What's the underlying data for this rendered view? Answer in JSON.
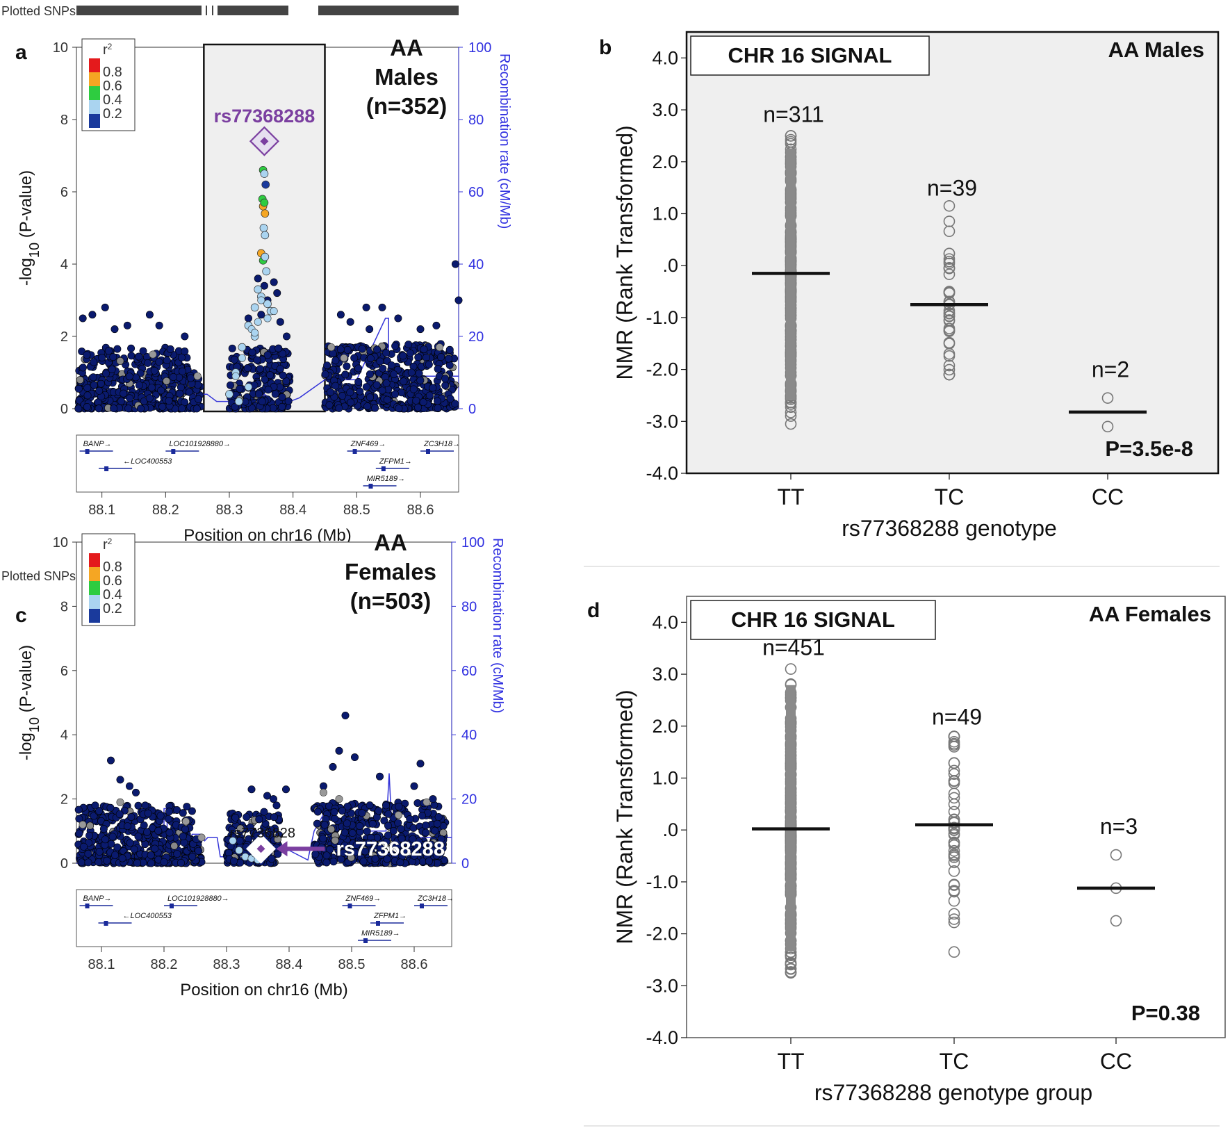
{
  "figure": {
    "panel_labels": [
      "a",
      "b",
      "c",
      "d"
    ],
    "plotted_snps_label": "Plotted SNPs",
    "legend": {
      "title": "r",
      "title_sup": "2",
      "values": [
        "0.8",
        "0.6",
        "0.4",
        "0.2"
      ],
      "colors": [
        "#e41a1c",
        "#f5a623",
        "#2ecc40",
        "#aad4f0",
        "#1a3a9c"
      ]
    },
    "colors": {
      "snp_navy": "#0a1a6e",
      "recomb_blue": "#3535d8",
      "purple": "#7b3fa0",
      "panel_bg": "#efefef"
    }
  },
  "chart_data": [
    {
      "id": "a",
      "type": "scatter",
      "title": "AA Males (n=352)",
      "title_lines": [
        "AA",
        "Males",
        "(n=352)"
      ],
      "ylabel": "-log",
      "ylabel_sub": "10",
      "ylabel_tail": " (P-value)",
      "y2label": "Recombination rate (cM/Mb)",
      "xlabel": "Position on chr16 (Mb)",
      "xlim": [
        88.06,
        88.66
      ],
      "ylim": [
        0,
        10
      ],
      "y2lim": [
        0,
        100
      ],
      "x_ticks": [
        "88.1",
        "88.2",
        "88.3",
        "88.4",
        "88.5",
        "88.6"
      ],
      "y_ticks": [
        "0",
        "2",
        "4",
        "6",
        "8",
        "10"
      ],
      "y2_ticks": [
        "0",
        "20",
        "40",
        "60",
        "80",
        "100"
      ],
      "highlight_region": [
        88.26,
        88.45
      ],
      "lead_snp": {
        "name": "rs77368288",
        "x": 88.355,
        "y": 7.4
      },
      "colored_points": [
        {
          "x": 88.353,
          "y": 6.6,
          "r2": 0.5
        },
        {
          "x": 88.355,
          "y": 6.5,
          "r2": 0.3
        },
        {
          "x": 88.357,
          "y": 6.2,
          "r2": 0.15
        },
        {
          "x": 88.352,
          "y": 5.8,
          "r2": 0.5
        },
        {
          "x": 88.353,
          "y": 5.6,
          "r2": 0.7
        },
        {
          "x": 88.355,
          "y": 5.7,
          "r2": 0.5
        },
        {
          "x": 88.356,
          "y": 5.4,
          "r2": 0.7
        },
        {
          "x": 88.354,
          "y": 5.0,
          "r2": 0.3
        },
        {
          "x": 88.356,
          "y": 4.8,
          "r2": 0.3
        },
        {
          "x": 88.35,
          "y": 4.3,
          "r2": 0.7
        },
        {
          "x": 88.353,
          "y": 4.1,
          "r2": 0.5
        },
        {
          "x": 88.356,
          "y": 4.2,
          "r2": 0.3
        },
        {
          "x": 88.358,
          "y": 3.8,
          "r2": 0.3
        },
        {
          "x": 88.345,
          "y": 3.3,
          "r2": 0.3
        },
        {
          "x": 88.35,
          "y": 3.1,
          "r2": 0.3
        },
        {
          "x": 88.34,
          "y": 2.8,
          "r2": 0.3
        },
        {
          "x": 88.36,
          "y": 2.9,
          "r2": 0.3
        },
        {
          "x": 88.33,
          "y": 2.3,
          "r2": 0.3
        },
        {
          "x": 88.365,
          "y": 2.7,
          "r2": 0.3
        },
        {
          "x": 88.32,
          "y": 1.7,
          "r2": 0.3
        },
        {
          "x": 88.31,
          "y": 1.0,
          "r2": 0.3
        },
        {
          "x": 88.3,
          "y": 0.4,
          "r2": 0.3
        },
        {
          "x": 88.315,
          "y": 0.2,
          "r2": 0.3
        },
        {
          "x": 88.34,
          "y": 2.0,
          "r2": 0.3
        }
      ],
      "genes": [
        {
          "name": "BANP",
          "arrow": "→",
          "x": 88.065,
          "row": 0
        },
        {
          "name": "LOC400553",
          "arrow": "←",
          "x": 88.095,
          "row": 1
        },
        {
          "name": "LOC101928880",
          "arrow": "→",
          "x": 88.2,
          "row": 0
        },
        {
          "name": "ZNF469",
          "arrow": "→",
          "x": 88.485,
          "row": 0
        },
        {
          "name": "ZFPM1",
          "arrow": "→",
          "x": 88.53,
          "row": 1
        },
        {
          "name": "MIR5189",
          "arrow": "→",
          "x": 88.51,
          "row": 2
        },
        {
          "name": "ZC3H18",
          "arrow": "→",
          "x": 88.6,
          "row": 0
        }
      ]
    },
    {
      "id": "b",
      "type": "scatter",
      "signal_label": "CHR 16 SIGNAL",
      "title": "AA Males",
      "ylabel": "NMR (Rank Transformed)",
      "xlabel": "rs77368288 genotype",
      "ylim": [
        -4.0,
        4.5
      ],
      "y_ticks": [
        "4.0",
        "3.0",
        "2.0",
        "1.0",
        ".0",
        "-1.0",
        "-2.0",
        "-3.0",
        "-4.0"
      ],
      "categories": [
        "TT",
        "TC",
        "CC"
      ],
      "counts": [
        "n=311",
        "n=39",
        "n=2"
      ],
      "means": [
        -0.15,
        -0.75,
        -2.82
      ],
      "ranges": [
        [
          -3.05,
          2.5
        ],
        [
          -2.1,
          1.15
        ],
        [
          -3.1,
          -2.55
        ]
      ],
      "p_value": "P=3.5e-8"
    },
    {
      "id": "c",
      "type": "scatter",
      "title": "AA Females (n=503)",
      "title_lines": [
        "AA",
        "Females",
        "(n=503)"
      ],
      "ylabel": "-log",
      "ylabel_sub": "10",
      "ylabel_tail": " (P-value)",
      "y2label": "Recombination rate (cM/Mb)",
      "xlabel": "Position on chr16 (Mb)",
      "xlim": [
        88.06,
        88.66
      ],
      "ylim": [
        0,
        10
      ],
      "y2lim": [
        0,
        100
      ],
      "x_ticks": [
        "88.1",
        "88.2",
        "88.3",
        "88.4",
        "88.5",
        "88.6"
      ],
      "y_ticks": [
        "0",
        "2",
        "4",
        "6",
        "8",
        "10"
      ],
      "y2_ticks": [
        "0",
        "20",
        "40",
        "60",
        "80",
        "100"
      ],
      "lead_snp": {
        "name": "rs77368288",
        "x": 88.355,
        "y": 0.45
      },
      "genes": [
        {
          "name": "BANP",
          "arrow": "→",
          "x": 88.065,
          "row": 0
        },
        {
          "name": "LOC400553",
          "arrow": "←",
          "x": 88.095,
          "row": 1
        },
        {
          "name": "LOC101928880",
          "arrow": "→",
          "x": 88.2,
          "row": 0
        },
        {
          "name": "ZNF469",
          "arrow": "→",
          "x": 88.485,
          "row": 0
        },
        {
          "name": "ZFPM1",
          "arrow": "→",
          "x": 88.53,
          "row": 1
        },
        {
          "name": "MIR5189",
          "arrow": "→",
          "x": 88.51,
          "row": 2
        },
        {
          "name": "ZC3H18",
          "arrow": "→",
          "x": 88.6,
          "row": 0
        }
      ]
    },
    {
      "id": "d",
      "type": "scatter",
      "signal_label": "CHR 16 SIGNAL",
      "title": "AA Females",
      "ylabel": "NMR (Rank Transformed)",
      "xlabel": "rs77368288 genotype group",
      "ylim": [
        -4.0,
        4.5
      ],
      "y_ticks": [
        "4.0",
        "3.0",
        "2.0",
        "1.0",
        ".0",
        "-1.0",
        "-2.0",
        "-3.0",
        "-4.0"
      ],
      "categories": [
        "TT",
        "TC",
        "CC"
      ],
      "counts": [
        "n=451",
        "n=49",
        "n=3"
      ],
      "means": [
        0.02,
        0.1,
        -1.12
      ],
      "ranges": [
        [
          -2.75,
          3.1
        ],
        [
          -2.35,
          1.8
        ],
        [
          -1.75,
          -0.48
        ]
      ],
      "p_value": "P=0.38"
    }
  ]
}
